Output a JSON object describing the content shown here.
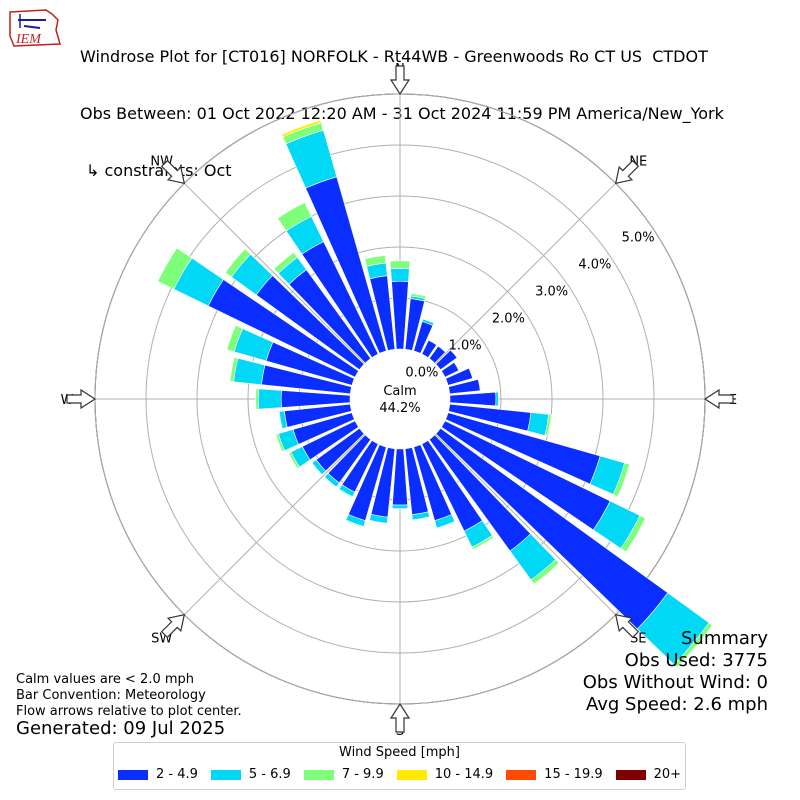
{
  "title": {
    "line1": "Windrose Plot for [CT016] NORFOLK - Rt44WB - Greenwoods Ro CT US  CTDOT",
    "line2": "Obs Between: 01 Oct 2022 12:20 AM - 31 Oct 2024 11:59 PM America/New_York",
    "line3": "↳ constraints: Oct"
  },
  "logo_text": "IEM",
  "calm": {
    "label": "Calm",
    "value": "44.2%"
  },
  "summary": {
    "heading": "Summary",
    "obs_used": "Obs Used: 3775",
    "obs_without_wind": "Obs Without Wind: 0",
    "avg_speed": "Avg Speed: 2.6 mph"
  },
  "notes": {
    "calm_note": "Calm values are < 2.0 mph",
    "bar_convention": "Bar Convention: Meteorology",
    "flow_arrows": "Flow arrows relative to plot center."
  },
  "generated": "Generated: 09 Jul 2025",
  "legend": {
    "title": "Wind Speed [mph]",
    "items": [
      {
        "label": "2 - 4.9",
        "color": "#0a2eff"
      },
      {
        "label": "5 - 6.9",
        "color": "#00d8f5"
      },
      {
        "label": "7 - 9.9",
        "color": "#7eff7a"
      },
      {
        "label": "10 - 14.9",
        "color": "#ffea00"
      },
      {
        "label": "15 - 19.9",
        "color": "#ff4a00"
      },
      {
        "label": "20+",
        "color": "#800000"
      }
    ]
  },
  "chart_data": {
    "type": "windrose",
    "radial_ticks": [
      "0.0%",
      "1.0%",
      "2.0%",
      "3.0%",
      "4.0%",
      "5.0%"
    ],
    "radial_range": [
      0,
      5.0
    ],
    "directions": [
      "N",
      "NE",
      "E",
      "SE",
      "S",
      "SW",
      "W",
      "NW"
    ],
    "sector_width_deg": 10,
    "sector_centers_deg": [
      0,
      10,
      20,
      30,
      40,
      50,
      60,
      70,
      80,
      90,
      100,
      110,
      120,
      130,
      140,
      150,
      160,
      170,
      180,
      190,
      200,
      210,
      220,
      230,
      240,
      250,
      260,
      270,
      280,
      290,
      300,
      310,
      320,
      330,
      340,
      350
    ],
    "series": [
      {
        "name": "2 - 4.9",
        "values": [
          1.33,
          1.0,
          0.6,
          0.3,
          0.3,
          0.4,
          0.3,
          0.5,
          0.6,
          0.9,
          1.6,
          3.1,
          3.6,
          5.5,
          2.7,
          1.9,
          1.5,
          1.3,
          1.1,
          1.35,
          1.5,
          1.05,
          1.05,
          1.05,
          1.15,
          1.2,
          1.3,
          1.35,
          1.75,
          1.75,
          3.2,
          2.5,
          2.15,
          2.45,
          3.55,
          1.45
        ]
      },
      {
        "name": "5 - 6.9",
        "values": [
          0.25,
          0.05,
          0.05,
          0.0,
          0.0,
          0.0,
          0.0,
          0.0,
          0.0,
          0.05,
          0.35,
          0.5,
          0.65,
          1.0,
          0.7,
          0.35,
          0.15,
          0.1,
          0.07,
          0.12,
          0.12,
          0.1,
          0.1,
          0.1,
          0.25,
          0.3,
          0.1,
          0.45,
          0.55,
          0.65,
          0.75,
          0.6,
          0.3,
          0.55,
          0.95,
          0.25
        ]
      },
      {
        "name": "7 - 9.9",
        "values": [
          0.15,
          0.05,
          0.0,
          0.0,
          0.0,
          0.0,
          0.0,
          0.0,
          0.0,
          0.0,
          0.05,
          0.1,
          0.12,
          0.08,
          0.1,
          0.05,
          0.0,
          0.0,
          0.0,
          0.0,
          0.02,
          0.02,
          0.0,
          0.0,
          0.05,
          0.05,
          0.0,
          0.05,
          0.07,
          0.15,
          0.35,
          0.15,
          0.12,
          0.3,
          0.15,
          0.15
        ]
      },
      {
        "name": "10 - 14.9",
        "values": [
          0,
          0,
          0,
          0,
          0,
          0,
          0,
          0,
          0,
          0,
          0,
          0,
          0,
          0,
          0,
          0,
          0,
          0,
          0,
          0,
          0,
          0,
          0,
          0,
          0,
          0,
          0,
          0,
          0,
          0,
          0,
          0,
          0,
          0,
          0.05,
          0
        ]
      },
      {
        "name": "15 - 19.9",
        "values": [
          0,
          0,
          0,
          0,
          0,
          0,
          0,
          0,
          0,
          0,
          0,
          0,
          0,
          0,
          0,
          0,
          0,
          0,
          0,
          0,
          0,
          0,
          0,
          0,
          0,
          0,
          0,
          0,
          0,
          0,
          0,
          0,
          0,
          0,
          0,
          0
        ]
      },
      {
        "name": "20+",
        "values": [
          0,
          0,
          0,
          0,
          0,
          0,
          0,
          0,
          0,
          0,
          0,
          0,
          0,
          0,
          0,
          0,
          0,
          0,
          0,
          0,
          0,
          0,
          0,
          0,
          0,
          0,
          0,
          0,
          0,
          0,
          0,
          0,
          0,
          0,
          0,
          0
        ]
      }
    ]
  }
}
